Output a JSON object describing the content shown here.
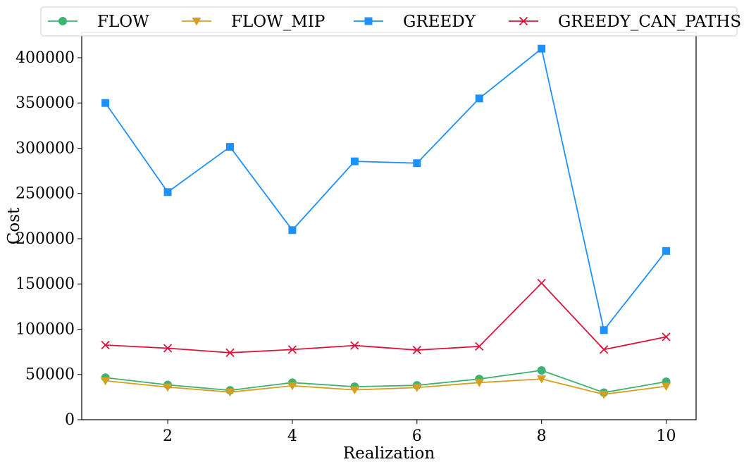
{
  "chart_data": {
    "type": "line",
    "xlabel": "Realization",
    "ylabel": "Cost",
    "xlim": [
      0.62,
      10.48
    ],
    "ylim": [
      0,
      428000
    ],
    "x": [
      1,
      2,
      3,
      4,
      5,
      6,
      7,
      8,
      9,
      10
    ],
    "xticks": [
      2,
      4,
      6,
      8,
      10
    ],
    "yticks": [
      0,
      50000,
      100000,
      150000,
      200000,
      250000,
      300000,
      350000,
      400000
    ],
    "legend_position": "top-center",
    "grid": false,
    "series": [
      {
        "name": "FLOW",
        "color": "#3cb371",
        "marker": "circle",
        "values": [
          46500,
          38500,
          32500,
          41000,
          36500,
          38000,
          45000,
          54500,
          30000,
          42000
        ]
      },
      {
        "name": "FLOW_MIP",
        "color": "#d4a020",
        "marker": "triangle-down",
        "values": [
          43000,
          36000,
          30500,
          37500,
          33000,
          35500,
          41000,
          45000,
          28000,
          37000
        ]
      },
      {
        "name": "GREEDY",
        "color": "#1e90ff",
        "marker": "square",
        "values": [
          350000,
          251500,
          301500,
          209500,
          285500,
          283500,
          355000,
          410000,
          99000,
          186500
        ]
      },
      {
        "name": "GREEDY_CAN_PATHS",
        "color": "#dc143c",
        "marker": "x",
        "values": [
          82500,
          79000,
          74000,
          77500,
          82000,
          77000,
          81000,
          151000,
          77500,
          91500
        ]
      }
    ]
  }
}
